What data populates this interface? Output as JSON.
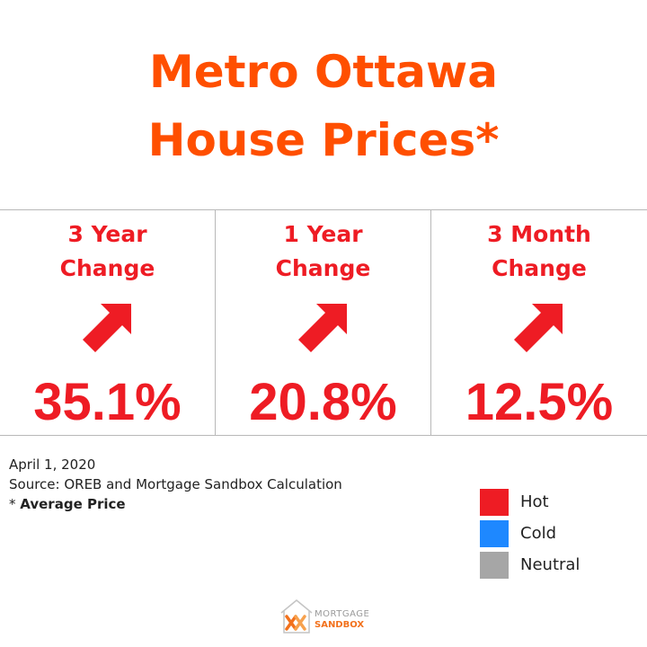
{
  "title": {
    "line1": "Metro Ottawa",
    "line2": "House Prices*"
  },
  "panels": [
    {
      "label_line1": "3 Year",
      "label_line2": "Change",
      "value": "35.1%",
      "trend": "up",
      "icon": "arrow-up-right-icon"
    },
    {
      "label_line1": "1 Year",
      "label_line2": "Change",
      "value": "20.8%",
      "trend": "up",
      "icon": "arrow-up-right-icon"
    },
    {
      "label_line1": "3 Month",
      "label_line2": "Change",
      "value": "12.5%",
      "trend": "up",
      "icon": "arrow-up-right-icon"
    }
  ],
  "notes": {
    "date": "April 1, 2020",
    "source": "Source: OREB and Mortgage Sandbox Calculation",
    "asterisk_prefix": "* ",
    "asterisk_bold": "Average Price"
  },
  "legend": [
    {
      "label": "Hot",
      "color": "#ee1c24"
    },
    {
      "label": "Cold",
      "color": "#1e88ff"
    },
    {
      "label": "Neutral",
      "color": "#a6a6a6"
    }
  ],
  "logo": {
    "line1": "MORTGAGE",
    "line2": "SANDBOX"
  },
  "colors": {
    "title": "#ff4f00",
    "hot": "#ee1c24",
    "border": "#b8b8b8"
  }
}
